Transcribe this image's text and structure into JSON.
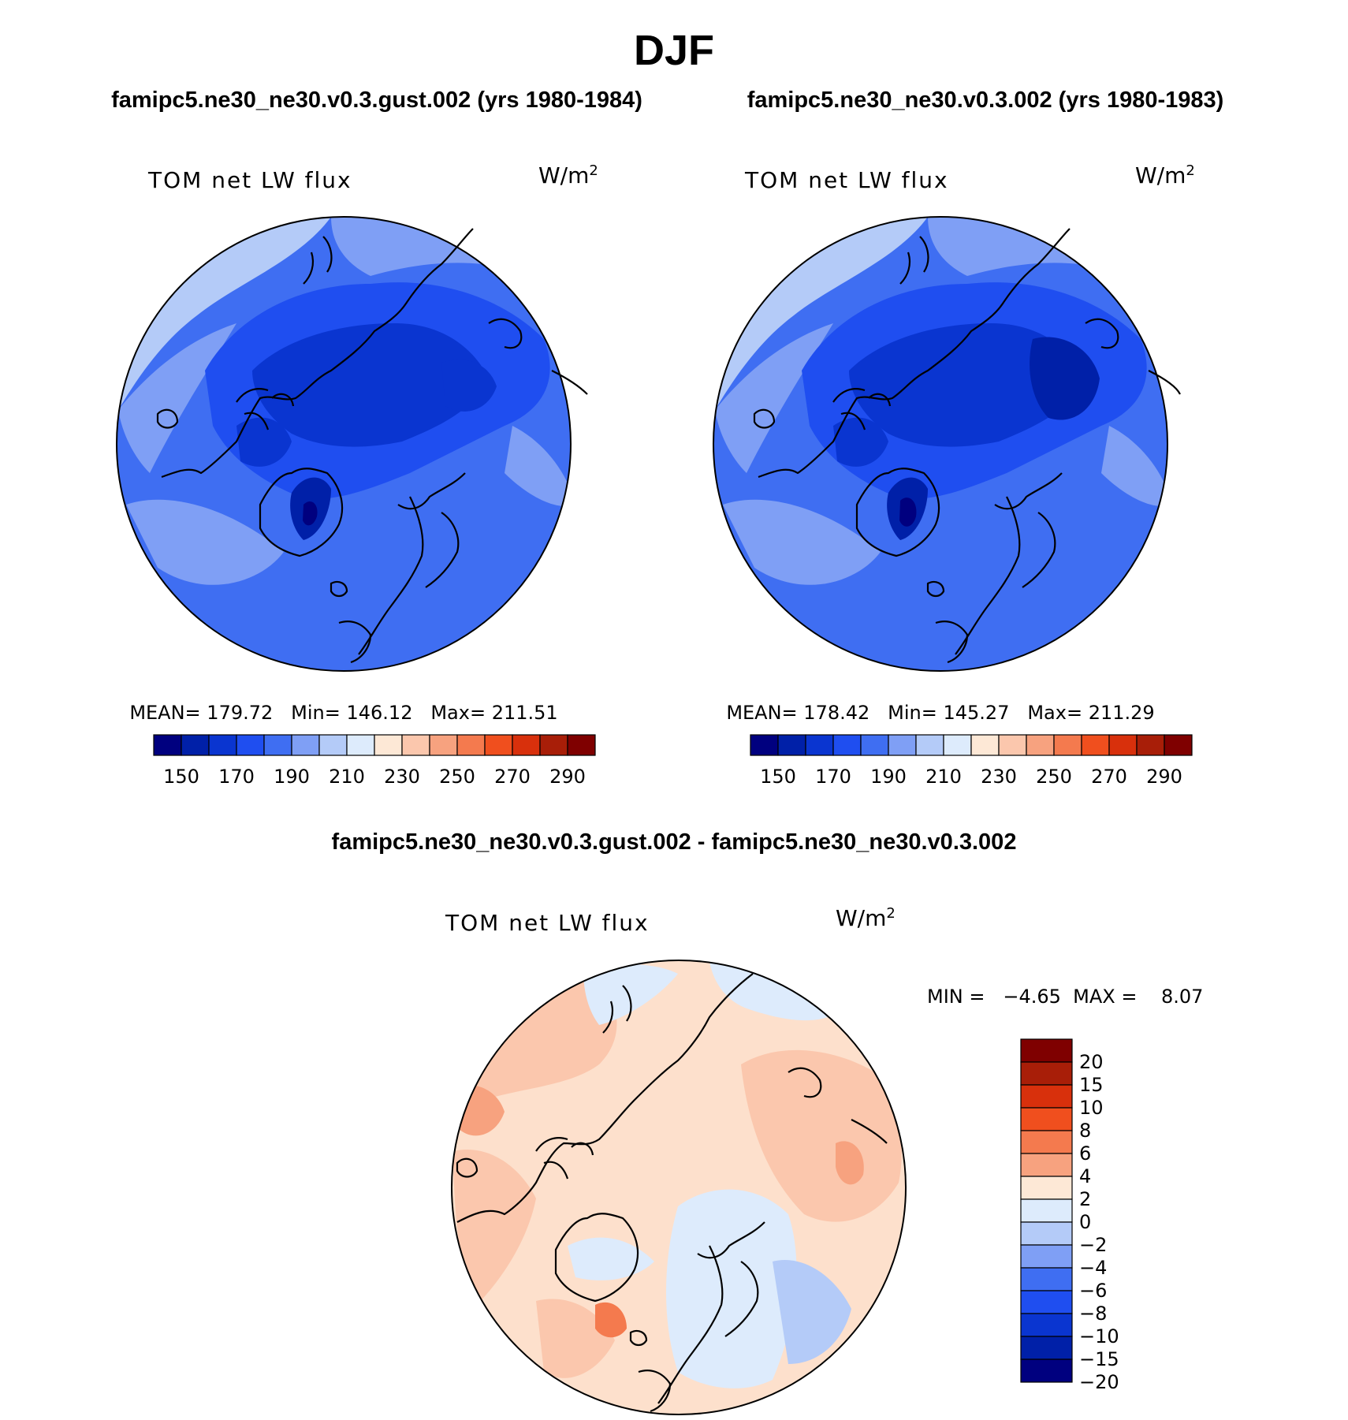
{
  "figure_title": "DJF",
  "panels": [
    {
      "run_title": "famipc5.ne30_ne30.v0.3.gust.002 (yrs 1980-1984)",
      "variable": "TOM net LW flux",
      "units_base": "W/m",
      "units_sup": "2",
      "stats": "MEAN= 179.72   Min= 146.12   Max= 211.51"
    },
    {
      "run_title": "famipc5.ne30_ne30.v0.3.002 (yrs 1980-1983)",
      "variable": "TOM net LW flux",
      "units_base": "W/m",
      "units_sup": "2",
      "stats": "MEAN= 178.42   Min= 145.27   Max= 211.29"
    }
  ],
  "colorbar_main": {
    "colors": [
      "#00007f",
      "#0020a8",
      "#0a35d0",
      "#1f4ef0",
      "#3f6ef2",
      "#7f9ff5",
      "#b4cbf8",
      "#ddebfc",
      "#fde8d6",
      "#fbc7ad",
      "#f7a27f",
      "#f47a4e",
      "#f04f1e",
      "#d8300c",
      "#a81e08",
      "#7f0000"
    ],
    "tick_labels": [
      "150",
      "170",
      "190",
      "210",
      "230",
      "250",
      "270",
      "290"
    ]
  },
  "difference": {
    "title": "famipc5.ne30_ne30.v0.3.gust.002 - famipc5.ne30_ne30.v0.3.002",
    "variable": "TOM net LW flux",
    "units_base": "W/m",
    "units_sup": "2",
    "min_max": "MIN =   −4.65  MAX =    8.07",
    "colorbar": {
      "colors": [
        "#7f0000",
        "#a81e08",
        "#d8300c",
        "#f04f1e",
        "#f47a4e",
        "#f7a27f",
        "#fde8d6",
        "#ddebfc",
        "#b4cbf8",
        "#7f9ff5",
        "#3f6ef2",
        "#1f4ef0",
        "#0a35d0",
        "#0020a8",
        "#00007f"
      ],
      "tick_labels": [
        "20",
        "15",
        "10",
        "8",
        "6",
        "4",
        "2",
        "0",
        "−2",
        "−4",
        "−6",
        "−8",
        "−10",
        "−15",
        "−20"
      ]
    }
  },
  "colors": {
    "deep_blue": "#1a3fd8",
    "mid_blue": "#3260ee",
    "light_blue": "#7d9cf4",
    "pale_blue": "#b9ccf7",
    "very_pale_blue": "#ddebfc",
    "dark_navy": "#0a1f9e",
    "peach": "#fde0cc",
    "salmon": "#f9c2a3",
    "orange_light": "#f5a07c",
    "coast": "#000000"
  }
}
